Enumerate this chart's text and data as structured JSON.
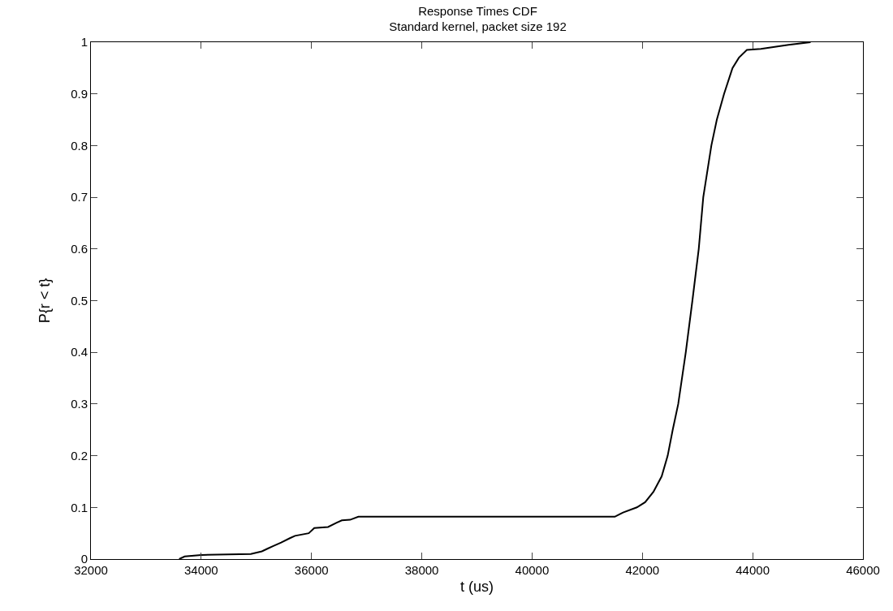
{
  "chart_data": {
    "type": "line",
    "title": "Response Times CDF",
    "subtitle": "Standard kernel, packet size 192",
    "xlabel": "t (us)",
    "ylabel": "P{r < t}",
    "series": [
      {
        "color": "#000000",
        "x": [
          33600,
          33700,
          34000,
          34900,
          35100,
          35200,
          35300,
          35450,
          35600,
          35700,
          35950,
          36050,
          36300,
          36450,
          36550,
          36700,
          36850,
          41500,
          41650,
          41900,
          42050,
          42200,
          42350,
          42459,
          42550,
          42650,
          42787,
          42907,
          43022,
          43104,
          43251,
          43350,
          43481,
          43634,
          43750,
          43895,
          44150,
          44400,
          44650,
          45050
        ],
        "values": [
          0,
          0.005,
          0.008,
          0.01,
          0.015,
          0.02,
          0.025,
          0.032,
          0.04,
          0.045,
          0.05,
          0.06,
          0.062,
          0.07,
          0.075,
          0.076,
          0.082,
          0.082,
          0.09,
          0.1,
          0.11,
          0.13,
          0.16,
          0.2,
          0.25,
          0.3,
          0.4,
          0.5,
          0.6,
          0.7,
          0.8,
          0.85,
          0.9,
          0.95,
          0.97,
          0.985,
          0.987,
          0.991,
          0.995,
          1.0
        ]
      }
    ],
    "xlim": [
      32000,
      46000
    ],
    "xticks": [
      32000,
      34000,
      36000,
      38000,
      40000,
      42000,
      44000,
      46000
    ],
    "ylim": [
      0,
      1
    ],
    "yticks": [
      0,
      0.1,
      0.2,
      0.3,
      0.4,
      0.5,
      0.6,
      0.7,
      0.8,
      0.9,
      1
    ],
    "marker": "none",
    "line_style": "solid"
  }
}
